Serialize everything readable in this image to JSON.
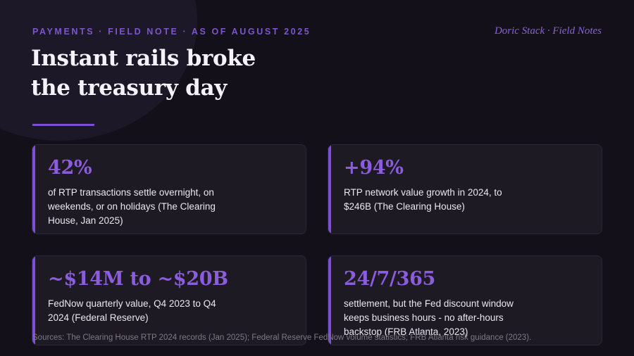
{
  "header": {
    "kicker": "PAYMENTS · FIELD NOTE · AS OF AUGUST 2025",
    "brand": "Doric Stack · Field Notes",
    "title_line1": "Instant rails broke",
    "title_line2": "the treasury day"
  },
  "cards": [
    {
      "stat": "42%",
      "desc": "of RTP transactions settle overnight, on weekends, or on holidays (The Clearing House, Jan 2025)"
    },
    {
      "stat": "+94%",
      "desc": "RTP network value growth in 2024, to $246B (The Clearing House)"
    },
    {
      "stat": "~$14M to ~$20B",
      "desc": "FedNow quarterly value, Q4 2023 to Q4 2024 (Federal Reserve)"
    },
    {
      "stat": "24/7/365",
      "desc": "settlement, but the Fed discount window keeps business hours - no after-hours backstop (FRB Atlanta, 2023)"
    }
  ],
  "footer": {
    "sources": "Sources: The Clearing House RTP 2024 records (Jan 2025); Federal Reserve FedNow volume statistics; FRB Atlanta risk guidance (2023)."
  },
  "colors": {
    "background": "#131019",
    "accent": "#7b4fd6",
    "stat": "#8b5cdc",
    "card": "#1d1a24"
  }
}
